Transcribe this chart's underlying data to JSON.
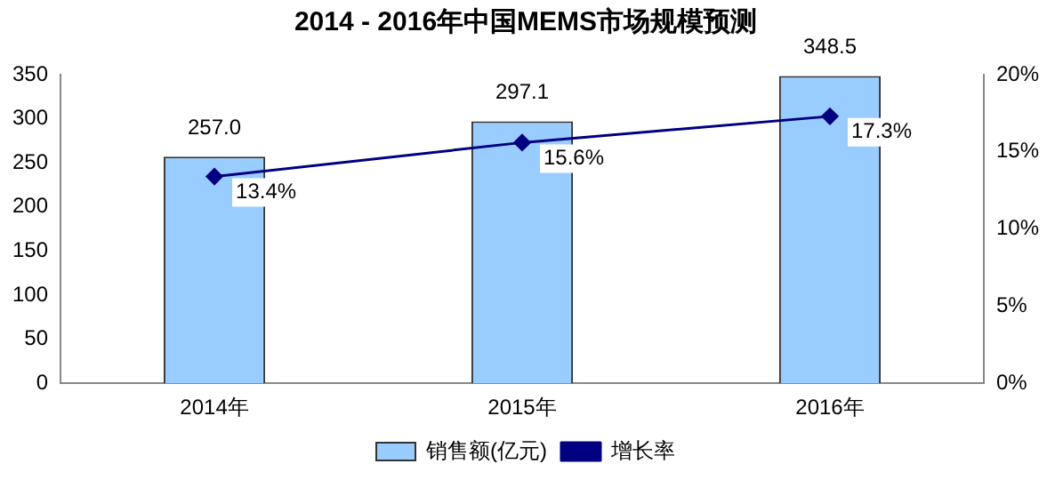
{
  "chart_data": {
    "type": "bar",
    "title": "2014 - 2016年中国MEMS市场规模预测",
    "categories": [
      "2014年",
      "2015年",
      "2016年"
    ],
    "series": [
      {
        "name": "销售额(亿元)",
        "color": "#99ccff",
        "values": [
          257.0,
          297.1,
          348.5
        ],
        "value_labels": [
          "257.0",
          "297.1",
          "348.5"
        ]
      },
      {
        "name": "增长率",
        "type": "line",
        "axis": "y2",
        "color": "#000080",
        "values": [
          13.4,
          15.6,
          17.3
        ],
        "value_labels": [
          "13.4%",
          "15.6%",
          "17.3%"
        ]
      }
    ],
    "ylim": [
      0,
      350
    ],
    "yticks": [
      0,
      50,
      100,
      150,
      200,
      250,
      300,
      350
    ],
    "y2lim": [
      0,
      20
    ],
    "y2ticks": [
      {
        "value": 0,
        "label": "0%"
      },
      {
        "value": 5,
        "label": "5%"
      },
      {
        "value": 10,
        "label": "10%"
      },
      {
        "value": 15,
        "label": "15%"
      },
      {
        "value": 20,
        "label": "20%"
      }
    ],
    "grid": false,
    "legend": "bottom",
    "marker": "diamond",
    "line_style": "solid"
  }
}
